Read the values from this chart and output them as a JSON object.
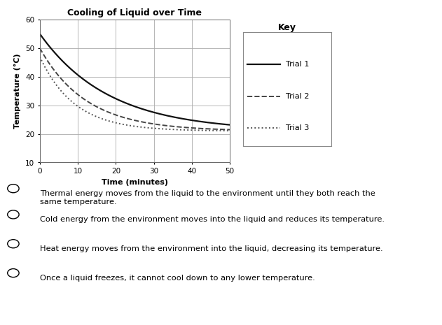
{
  "title": "Cooling of Liquid over Time",
  "xlabel": "Time (minutes)",
  "ylabel": "Temperature (°C)",
  "xlim": [
    0,
    50
  ],
  "ylim": [
    10,
    60
  ],
  "xticks": [
    0,
    10,
    20,
    30,
    40,
    50
  ],
  "yticks": [
    10,
    20,
    30,
    40,
    50,
    60
  ],
  "ambient": 21.0,
  "trial1": {
    "T0": 55.0,
    "k": 0.055,
    "linestyle": "-",
    "color": "#111111",
    "lw": 1.6,
    "label": "Trial 1"
  },
  "trial2": {
    "T0": 50.0,
    "k": 0.082,
    "linestyle": "--",
    "color": "#444444",
    "lw": 1.4,
    "label": "Trial 2"
  },
  "trial3": {
    "T0": 47.0,
    "k": 0.11,
    "linestyle": ":",
    "color": "#555555",
    "lw": 1.4,
    "label": "Trial 3"
  },
  "key_title": "Key",
  "bg_color": "#ffffff",
  "grid_color": "#aaaaaa",
  "answers": [
    "Thermal energy moves from the liquid to the environment until they both reach the\nsame temperature.",
    "Cold energy from the environment moves into the liquid and reduces its temperature.",
    "Heat energy moves from the environment into the liquid, decreasing its temperature.",
    "Once a liquid freezes, it cannot cool down to any lower temperature."
  ]
}
